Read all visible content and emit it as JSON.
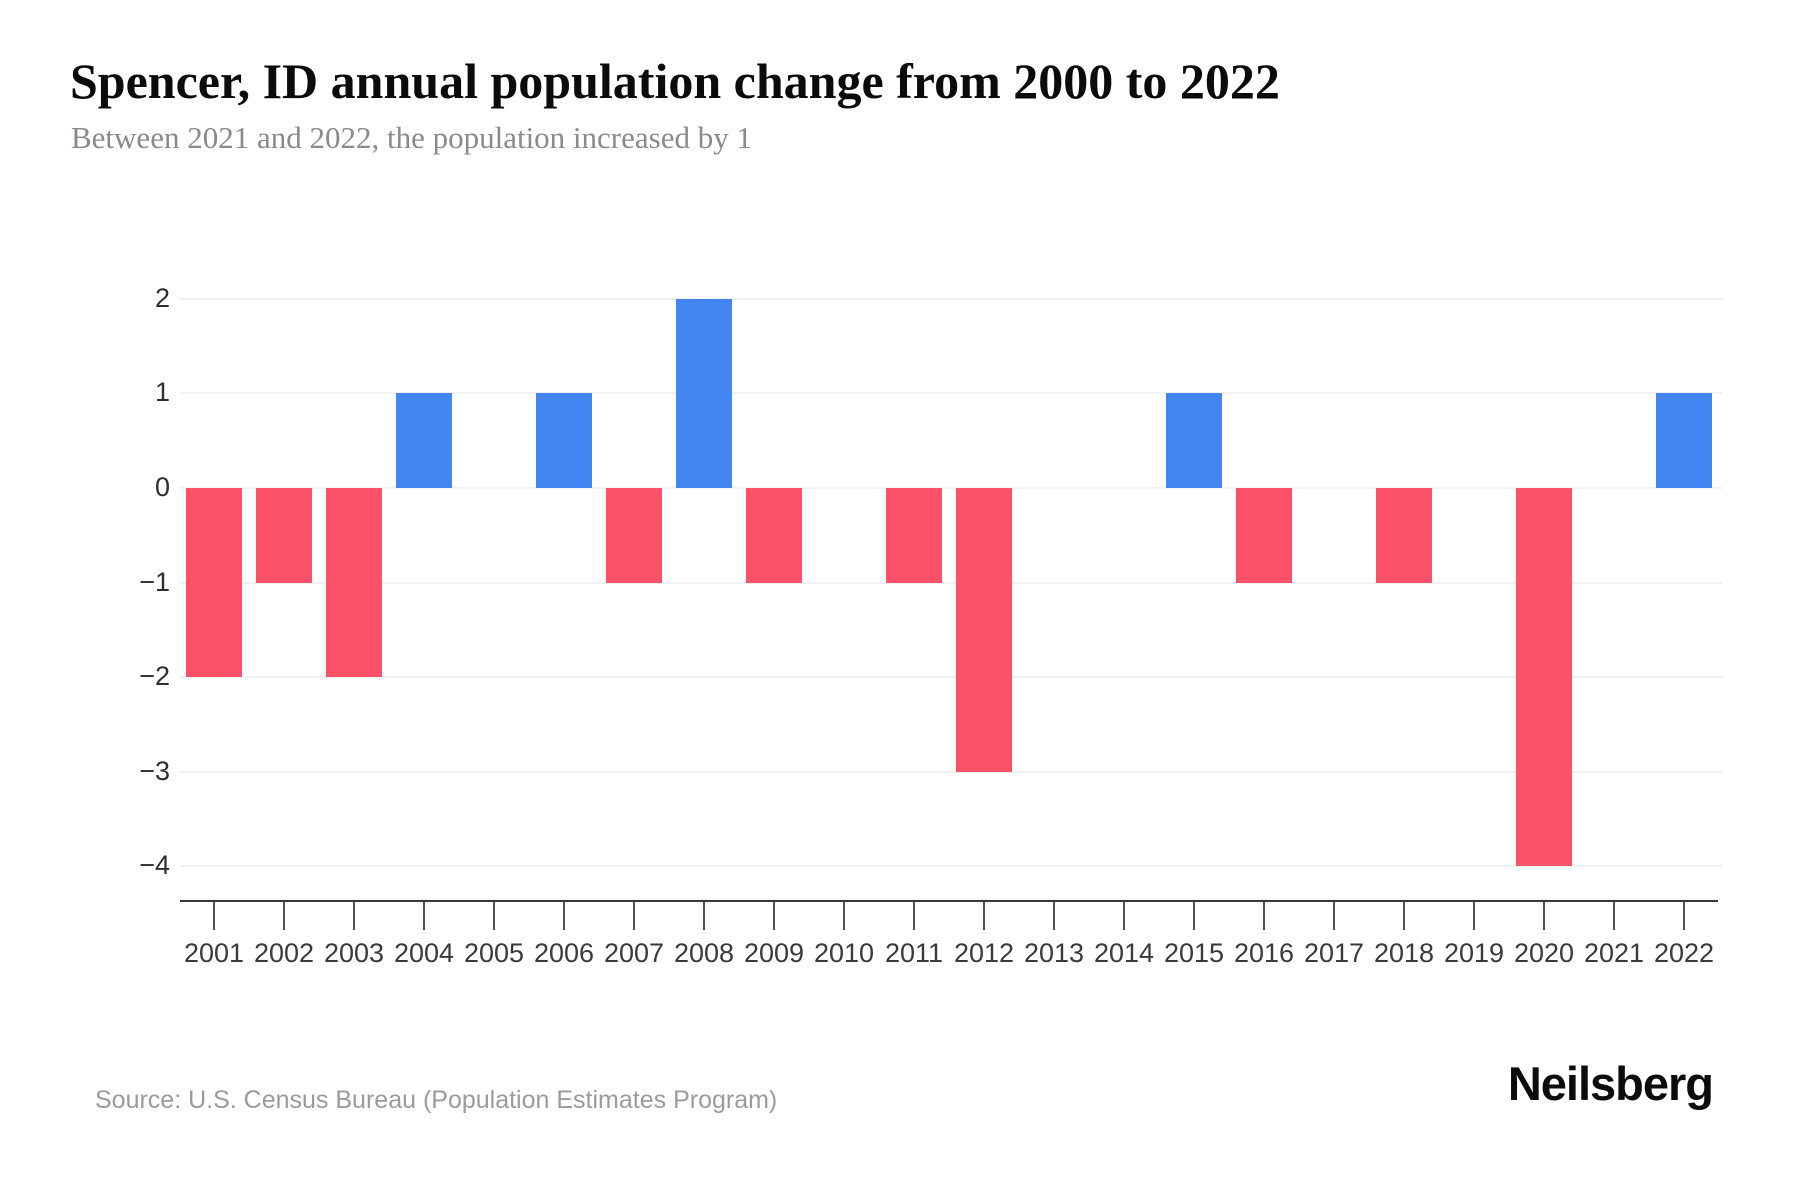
{
  "header": {
    "title": "Spencer, ID annual population change from 2000 to 2022",
    "subtitle": "Between 2021 and 2022, the population increased by 1"
  },
  "footer": {
    "source": "Source: U.S. Census Bureau (Population Estimates Program)",
    "brand": "Neilsberg"
  },
  "chart_data": {
    "type": "bar",
    "title": "Spencer, ID annual population change from 2000 to 2022",
    "subtitle": "Between 2021 and 2022, the population increased by 1",
    "categories": [
      "2001",
      "2002",
      "2003",
      "2004",
      "2005",
      "2006",
      "2007",
      "2008",
      "2009",
      "2010",
      "2011",
      "2012",
      "2013",
      "2014",
      "2015",
      "2016",
      "2017",
      "2018",
      "2019",
      "2020",
      "2021",
      "2022"
    ],
    "values": [
      -2,
      -1,
      -2,
      1,
      0,
      1,
      -1,
      2,
      -1,
      0,
      -1,
      -3,
      0,
      0,
      1,
      -1,
      0,
      -1,
      0,
      -4,
      0,
      1
    ],
    "xlabel": "",
    "ylabel": "",
    "yticks": [
      2,
      1,
      0,
      -1,
      -2,
      -3,
      -4
    ],
    "ylim": [
      -4,
      2
    ],
    "grid": true,
    "legend": false,
    "colors": {
      "positive": "#4385F3",
      "negative": "#FC5269",
      "gridline": "#f1f1f1",
      "axis": "#3a3a3a"
    }
  }
}
